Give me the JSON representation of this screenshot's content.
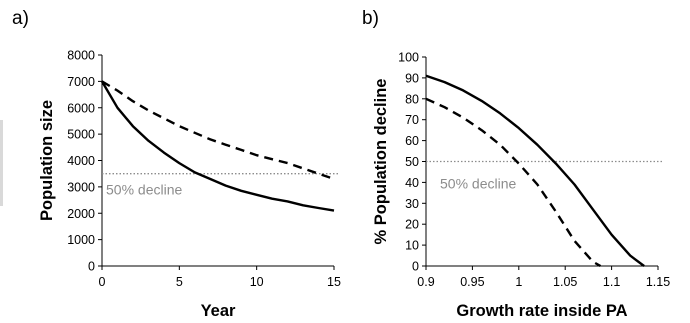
{
  "chart_data": [
    {
      "panel": "a)",
      "type": "line",
      "xlabel": "Year",
      "ylabel": "Population size",
      "xlim": [
        0,
        15
      ],
      "ylim": [
        0,
        8000
      ],
      "xticks": [
        "0",
        "5",
        "10",
        "15"
      ],
      "yticks": [
        "0",
        "1000",
        "2000",
        "3000",
        "4000",
        "5000",
        "6000",
        "7000",
        "8000"
      ],
      "reference": {
        "y": 3500,
        "label": "50% decline",
        "style": "dotted"
      },
      "series": [
        {
          "style": "solid",
          "x": [
            0,
            1,
            2,
            3,
            4,
            5,
            6,
            7,
            8,
            9,
            10,
            11,
            12,
            13,
            14,
            15
          ],
          "y": [
            7000,
            6000,
            5300,
            4750,
            4300,
            3900,
            3550,
            3300,
            3050,
            2850,
            2700,
            2550,
            2450,
            2300,
            2200,
            2100
          ]
        },
        {
          "style": "dashed",
          "x": [
            0,
            1,
            2,
            3,
            4,
            5,
            6,
            7,
            8,
            9,
            10,
            11,
            12,
            13,
            14,
            15
          ],
          "y": [
            7000,
            6650,
            6250,
            5900,
            5600,
            5300,
            5050,
            4800,
            4600,
            4400,
            4200,
            4050,
            3900,
            3700,
            3500,
            3300
          ]
        }
      ]
    },
    {
      "panel": "b)",
      "type": "line",
      "xlabel": "Growth rate inside PA",
      "ylabel": "% Population decline",
      "xlim": [
        0.9,
        1.15
      ],
      "ylim": [
        0,
        100
      ],
      "xticks": [
        "0.9",
        "0.95",
        "1",
        "1.05",
        "1.1",
        "1.15"
      ],
      "yticks": [
        "0",
        "10",
        "20",
        "30",
        "40",
        "50",
        "60",
        "70",
        "80",
        "90",
        "100"
      ],
      "reference": {
        "y": 50,
        "label": "50% decline",
        "style": "dotted"
      },
      "series": [
        {
          "style": "solid",
          "x": [
            0.9,
            0.92,
            0.94,
            0.96,
            0.98,
            1.0,
            1.02,
            1.04,
            1.06,
            1.08,
            1.1,
            1.12,
            1.135
          ],
          "y": [
            91,
            88,
            84,
            79,
            73,
            66,
            58,
            49,
            39,
            27,
            15,
            5,
            0
          ]
        },
        {
          "style": "dashed",
          "x": [
            0.9,
            0.92,
            0.94,
            0.96,
            0.98,
            1.0,
            1.02,
            1.04,
            1.06,
            1.08,
            1.088
          ],
          "y": [
            80,
            76,
            71,
            65,
            58,
            49,
            39,
            26,
            12,
            2,
            0
          ]
        }
      ]
    }
  ]
}
